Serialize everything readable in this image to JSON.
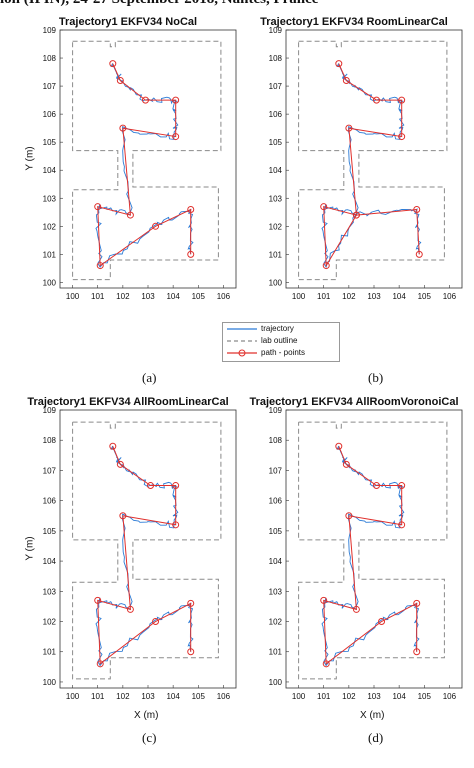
{
  "header": {
    "text": "ion (IPIN), 24-27 September 2018, Nantes, France"
  },
  "legend": {
    "items": [
      {
        "label": "trajectory",
        "color": "#2b7bd6",
        "style": "solid"
      },
      {
        "label": "lab outline",
        "color": "#8a8a8a",
        "style": "dashed"
      },
      {
        "label": "path - points",
        "color": "#e0302c",
        "style": "marker"
      }
    ]
  },
  "chart_data": [
    {
      "type": "line",
      "caption": "(a)",
      "title": "Trajectory1 EKFV34 NoCal",
      "ylabel": "Y (m)",
      "xlabel": "",
      "xlim": [
        99.5,
        106.5
      ],
      "ylim": [
        99.8,
        109
      ],
      "xticks": [
        100,
        101,
        102,
        103,
        104,
        105,
        106
      ],
      "yticks": [
        100,
        101,
        102,
        103,
        104,
        105,
        106,
        107,
        108,
        109
      ],
      "path_points": {
        "x": [
          101.6,
          101.9,
          102.9,
          104.1,
          104.1,
          102,
          102.3,
          101,
          101.1,
          103.3,
          104.7,
          104.7
        ],
        "y": [
          107.8,
          107.2,
          106.5,
          106.5,
          105.2,
          105.5,
          102.4,
          102.7,
          100.6,
          102,
          102.6,
          101
        ]
      }
    },
    {
      "type": "line",
      "caption": "(b)",
      "title": "Trajectory1 EKFV34 RoomLinearCal",
      "ylabel": "",
      "xlabel": "",
      "xlim": [
        99.5,
        106.5
      ],
      "ylim": [
        99.8,
        109
      ],
      "xticks": [
        100,
        101,
        102,
        103,
        104,
        105,
        106
      ],
      "yticks": [
        100,
        101,
        102,
        103,
        104,
        105,
        106,
        107,
        108,
        109
      ],
      "path_points": {
        "x": [
          101.6,
          101.9,
          103.1,
          104.1,
          104.1,
          102,
          102.3,
          101,
          101.1,
          102.3,
          104.7,
          104.8
        ],
        "y": [
          107.8,
          107.2,
          106.5,
          106.5,
          105.2,
          105.5,
          102.4,
          102.7,
          100.6,
          102.4,
          102.6,
          101
        ]
      }
    },
    {
      "type": "line",
      "caption": "(c)",
      "title": "Trajectory1 EKFV34 AllRoomLinearCal",
      "ylabel": "Y (m)",
      "xlabel": "X (m)",
      "xlim": [
        99.5,
        106.5
      ],
      "ylim": [
        99.8,
        109
      ],
      "xticks": [
        100,
        101,
        102,
        103,
        104,
        105,
        106
      ],
      "yticks": [
        100,
        101,
        102,
        103,
        104,
        105,
        106,
        107,
        108,
        109
      ],
      "path_points": {
        "x": [
          101.6,
          101.9,
          103.1,
          104.1,
          104.1,
          102,
          102.3,
          101,
          101.1,
          103.3,
          104.7,
          104.7
        ],
        "y": [
          107.8,
          107.2,
          106.5,
          106.5,
          105.2,
          105.5,
          102.4,
          102.7,
          100.6,
          102,
          102.6,
          101
        ]
      }
    },
    {
      "type": "line",
      "caption": "(d)",
      "title": "Trajectory1 EKFV34 AllRoomVoronoiCal",
      "ylabel": "",
      "xlabel": "X (m)",
      "xlim": [
        99.5,
        106.5
      ],
      "ylim": [
        99.8,
        109
      ],
      "xticks": [
        100,
        101,
        102,
        103,
        104,
        105,
        106
      ],
      "yticks": [
        100,
        101,
        102,
        103,
        104,
        105,
        106,
        107,
        108,
        109
      ],
      "path_points": {
        "x": [
          101.6,
          101.9,
          103.1,
          104.1,
          104.1,
          102,
          102.3,
          101,
          101.1,
          103.3,
          104.7,
          104.7
        ],
        "y": [
          107.8,
          107.2,
          106.5,
          106.5,
          105.2,
          105.5,
          102.4,
          102.7,
          100.6,
          102,
          102.6,
          101
        ]
      }
    }
  ]
}
